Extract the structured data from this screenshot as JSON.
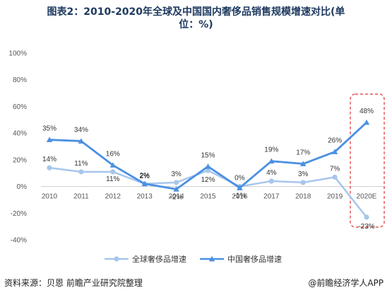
{
  "title_line1": "图表2：2010-2020年全球及中国国内奢侈品销售规模增速对比(单",
  "title_line2": "位：%)",
  "footer": {
    "source": "资料来源：贝恩 前瞻产业研究院整理",
    "brand": "@前瞻经济学人APP"
  },
  "colors": {
    "global": "#a7c6ec",
    "china": "#4a90e2",
    "highlight_box": "#e03030",
    "title": "#1f3a60"
  },
  "chart_data": {
    "type": "line",
    "categories": [
      "2010",
      "2011",
      "2012",
      "2013",
      "2014",
      "2015",
      "2016",
      "2017",
      "2018",
      "2019",
      "2020E"
    ],
    "ylim": [
      -40,
      100
    ],
    "yticks": [
      -40,
      -20,
      0,
      20,
      40,
      60,
      80,
      100
    ],
    "ytick_labels": [
      "-40%",
      "-20%",
      "0%",
      "20%",
      "40%",
      "60%",
      "80%",
      "100%"
    ],
    "grid": false,
    "legend_position": "bottom",
    "highlight_category": "2020E",
    "series": [
      {
        "name": "全球奢侈品增速",
        "values": [
          14,
          11,
          11,
          2,
          3,
          12,
          0,
          4,
          3,
          7,
          -23
        ],
        "labels": [
          "14%",
          "11%",
          "11%",
          "2%",
          "3%",
          "12%",
          "0%",
          "4%",
          "3%",
          "7%",
          "-23%"
        ],
        "marker": "circle"
      },
      {
        "name": "中国奢侈品增速",
        "values": [
          35,
          34,
          16,
          2,
          -2,
          15,
          -1,
          19,
          17,
          26,
          48
        ],
        "labels": [
          "35%",
          "34%",
          "16%",
          "2%",
          "-2%",
          "15%",
          "-1%",
          "19%",
          "17%",
          "26%",
          "48%"
        ],
        "marker": "triangle"
      }
    ]
  }
}
